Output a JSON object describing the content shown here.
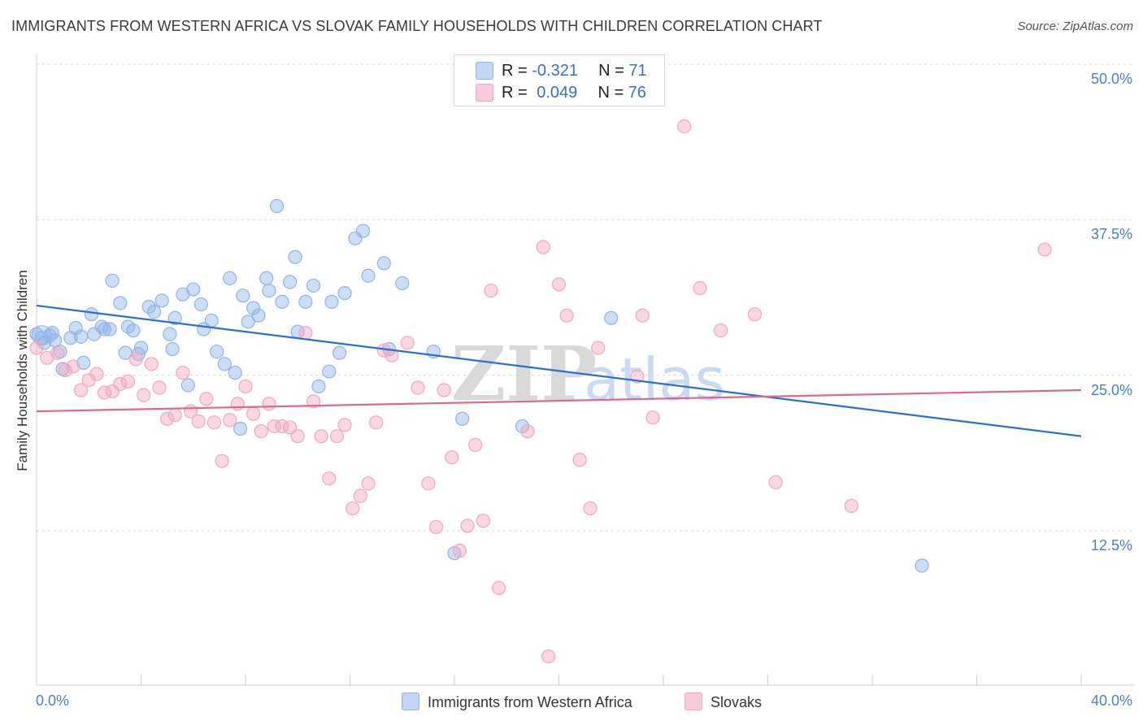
{
  "title": "IMMIGRANTS FROM WESTERN AFRICA VS SLOVAK FAMILY HOUSEHOLDS WITH CHILDREN CORRELATION CHART",
  "source": "Source: ZipAtlas.com",
  "watermark": {
    "zip": "ZIP",
    "atlas": "atlas"
  },
  "legend": {
    "r_label": "R =",
    "n_label": "N =",
    "series1": {
      "r": "-0.321",
      "n": "71"
    },
    "series2": {
      "r": "0.049",
      "n": "76"
    }
  },
  "chart_data": {
    "type": "scatter",
    "title": "IMMIGRANTS FROM WESTERN AFRICA VS SLOVAK FAMILY HOUSEHOLDS WITH CHILDREN CORRELATION CHART",
    "xlabel": "Immigrants from Western Africa",
    "ylabel": "Family Households with Children",
    "xlim": [
      0,
      40
    ],
    "ylim": [
      0,
      52
    ],
    "y_ticks": [
      12.5,
      25.0,
      37.5,
      50.0
    ],
    "y_tick_labels": [
      "12.5%",
      "25.0%",
      "37.5%",
      "50.0%"
    ],
    "x_tick_labels": [
      "0.0%",
      "40.0%"
    ],
    "grid": true,
    "series": [
      {
        "name": "Immigrants from Western Africa",
        "color": "#8fb4ea",
        "line_color": "#2a6fd0",
        "trend": {
          "x": [
            0,
            40
          ],
          "y": [
            30.6,
            20.1
          ]
        },
        "points": [
          [
            0.2,
            28.0
          ],
          [
            0.3,
            27.6
          ],
          [
            0.5,
            28.2
          ],
          [
            0.6,
            28.4
          ],
          [
            0.7,
            27.8
          ],
          [
            0.9,
            26.9
          ],
          [
            1.0,
            25.5
          ],
          [
            1.3,
            28.0
          ],
          [
            1.5,
            28.8
          ],
          [
            1.7,
            28.1
          ],
          [
            1.8,
            26.0
          ],
          [
            2.1,
            29.9
          ],
          [
            2.2,
            28.3
          ],
          [
            2.5,
            28.9
          ],
          [
            2.6,
            28.7
          ],
          [
            2.8,
            28.7
          ],
          [
            2.9,
            32.6
          ],
          [
            3.2,
            30.8
          ],
          [
            3.4,
            26.8
          ],
          [
            3.5,
            28.9
          ],
          [
            3.7,
            28.6
          ],
          [
            3.9,
            26.7
          ],
          [
            4.0,
            27.2
          ],
          [
            4.3,
            30.5
          ],
          [
            4.5,
            30.1
          ],
          [
            4.8,
            31.0
          ],
          [
            5.1,
            28.3
          ],
          [
            5.2,
            27.1
          ],
          [
            5.3,
            29.6
          ],
          [
            5.6,
            31.5
          ],
          [
            5.8,
            24.2
          ],
          [
            6.0,
            31.9
          ],
          [
            6.3,
            30.7
          ],
          [
            6.4,
            28.7
          ],
          [
            6.7,
            29.4
          ],
          [
            6.9,
            26.9
          ],
          [
            7.2,
            25.9
          ],
          [
            7.4,
            32.8
          ],
          [
            7.6,
            25.2
          ],
          [
            7.8,
            20.7
          ],
          [
            7.9,
            31.4
          ],
          [
            8.1,
            29.3
          ],
          [
            8.3,
            30.4
          ],
          [
            8.5,
            29.8
          ],
          [
            8.8,
            32.8
          ],
          [
            8.9,
            31.8
          ],
          [
            9.2,
            38.6
          ],
          [
            9.4,
            30.9
          ],
          [
            9.7,
            32.5
          ],
          [
            9.9,
            34.5
          ],
          [
            10.0,
            28.5
          ],
          [
            10.3,
            30.9
          ],
          [
            10.6,
            32.2
          ],
          [
            10.8,
            24.1
          ],
          [
            11.2,
            25.3
          ],
          [
            11.3,
            30.9
          ],
          [
            11.6,
            26.8
          ],
          [
            11.8,
            31.6
          ],
          [
            12.2,
            36.0
          ],
          [
            12.5,
            36.6
          ],
          [
            12.7,
            33.0
          ],
          [
            13.3,
            34.0
          ],
          [
            13.5,
            27.1
          ],
          [
            14.0,
            32.4
          ],
          [
            15.2,
            26.9
          ],
          [
            16.0,
            10.7
          ],
          [
            16.3,
            21.5
          ],
          [
            18.6,
            20.9
          ],
          [
            22.0,
            29.6
          ],
          [
            33.9,
            9.7
          ],
          [
            0.0,
            28.3
          ]
        ]
      },
      {
        "name": "Slovaks",
        "color": "#f3a6bf",
        "line_color": "#e0668f",
        "trend": {
          "x": [
            0,
            40
          ],
          "y": [
            22.1,
            23.8
          ]
        },
        "points": [
          [
            0.0,
            27.2
          ],
          [
            0.4,
            26.4
          ],
          [
            0.8,
            26.8
          ],
          [
            1.1,
            25.4
          ],
          [
            1.4,
            25.7
          ],
          [
            1.7,
            23.8
          ],
          [
            2.0,
            24.6
          ],
          [
            2.3,
            25.1
          ],
          [
            2.6,
            23.6
          ],
          [
            2.9,
            23.7
          ],
          [
            3.2,
            24.3
          ],
          [
            3.5,
            24.5
          ],
          [
            3.8,
            26.3
          ],
          [
            4.1,
            23.4
          ],
          [
            4.4,
            25.9
          ],
          [
            4.7,
            24.0
          ],
          [
            5.0,
            21.5
          ],
          [
            5.3,
            21.8
          ],
          [
            5.6,
            25.2
          ],
          [
            5.9,
            22.1
          ],
          [
            6.2,
            21.3
          ],
          [
            6.5,
            23.1
          ],
          [
            6.8,
            21.2
          ],
          [
            7.1,
            18.1
          ],
          [
            7.4,
            21.4
          ],
          [
            7.7,
            22.7
          ],
          [
            8.0,
            24.1
          ],
          [
            8.3,
            21.9
          ],
          [
            8.6,
            20.5
          ],
          [
            8.9,
            22.7
          ],
          [
            9.1,
            20.9
          ],
          [
            9.4,
            20.9
          ],
          [
            9.7,
            20.8
          ],
          [
            10.0,
            20.1
          ],
          [
            10.3,
            28.4
          ],
          [
            10.6,
            22.9
          ],
          [
            10.9,
            20.1
          ],
          [
            11.2,
            16.7
          ],
          [
            11.5,
            20.1
          ],
          [
            11.8,
            21.0
          ],
          [
            12.1,
            14.3
          ],
          [
            12.4,
            15.3
          ],
          [
            12.7,
            16.3
          ],
          [
            13.0,
            21.2
          ],
          [
            13.3,
            27.0
          ],
          [
            13.6,
            26.6
          ],
          [
            14.2,
            27.6
          ],
          [
            14.6,
            24.0
          ],
          [
            15.0,
            16.3
          ],
          [
            15.3,
            12.8
          ],
          [
            15.6,
            23.8
          ],
          [
            15.9,
            18.4
          ],
          [
            16.2,
            10.9
          ],
          [
            16.5,
            12.9
          ],
          [
            16.8,
            19.4
          ],
          [
            17.1,
            13.3
          ],
          [
            17.4,
            31.8
          ],
          [
            17.7,
            7.9
          ],
          [
            18.8,
            20.5
          ],
          [
            19.4,
            35.3
          ],
          [
            19.6,
            2.4
          ],
          [
            20.0,
            32.3
          ],
          [
            20.3,
            29.8
          ],
          [
            20.8,
            18.2
          ],
          [
            21.2,
            14.3
          ],
          [
            21.5,
            27.2
          ],
          [
            23.0,
            24.9
          ],
          [
            23.2,
            29.8
          ],
          [
            23.6,
            21.6
          ],
          [
            24.8,
            45.0
          ],
          [
            25.4,
            32.0
          ],
          [
            26.2,
            28.6
          ],
          [
            27.5,
            29.9
          ],
          [
            28.3,
            16.4
          ],
          [
            31.2,
            14.5
          ],
          [
            38.6,
            35.1
          ]
        ]
      }
    ]
  }
}
